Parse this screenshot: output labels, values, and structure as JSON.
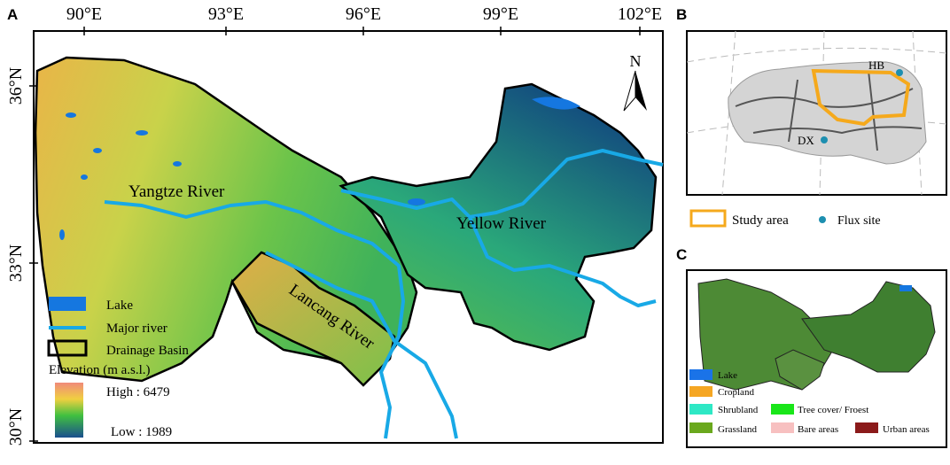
{
  "panel_a": {
    "label": "A",
    "lon_ticks": [
      "90°E",
      "93°E",
      "96°E",
      "99°E",
      "102°E"
    ],
    "lat_ticks": [
      "36°N",
      "33°N",
      "30°N"
    ],
    "north": "N",
    "rivers": [
      "Yangtze River",
      "Yellow River",
      "Lancang River"
    ],
    "legend": [
      "Lake",
      "Major river",
      "Drainage Basin"
    ],
    "elevation": {
      "title": "Elevation (m a.s.l.)",
      "high": "High : 6479",
      "low": "Low : 1989"
    }
  },
  "panel_b": {
    "label": "B",
    "sites": [
      "HB",
      "DX"
    ],
    "legend": [
      "Study area",
      "Flux site"
    ]
  },
  "panel_c": {
    "label": "C",
    "legend": [
      "Lake",
      "Cropland",
      "Shrubland",
      "Tree cover/ Froest",
      "Grassland",
      "Bare areas",
      "Urban areas"
    ]
  }
}
